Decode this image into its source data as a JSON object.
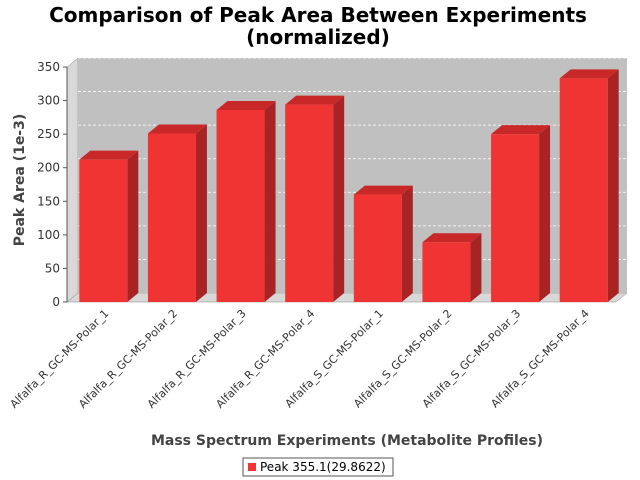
{
  "chart_data": {
    "type": "bar",
    "title_line1": "Comparison of Peak Area Between Experiments",
    "title_line2": "(normalized)",
    "xlabel": "Mass Spectrum Experiments (Metabolite Profiles)",
    "ylabel": "Peak Area (1e-3)",
    "categories": [
      "Alfalfa_R_GC-MS-Polar_1",
      "Alfalfa_R_GC-MS-Polar_2",
      "Alfalfa_R_GC-MS-Polar_3",
      "Alfalfa_R_GC-MS-Polar_4",
      "Alfalfa_S_GC-MS-Polar_1",
      "Alfalfa_S_GC-MS-Polar_2",
      "Alfalfa_S_GC-MS-Polar_3",
      "Alfalfa_S_GC-MS-Polar_4"
    ],
    "series": [
      {
        "name": "Peak 355.1(29.8622)",
        "values": [
          212,
          251,
          286,
          294,
          160,
          89,
          250,
          333
        ]
      }
    ],
    "ylim": [
      0,
      350
    ],
    "yticks": [
      "0",
      "50",
      "100",
      "150",
      "200",
      "250",
      "300",
      "350"
    ],
    "grid": true,
    "legend_position": "bottom",
    "colors": {
      "bar_front": "#f03434",
      "bar_top": "#c82828",
      "bar_side": "#a82424",
      "plot_bg": "#c0c0c0",
      "wall_side": "#d8d8d8"
    }
  }
}
